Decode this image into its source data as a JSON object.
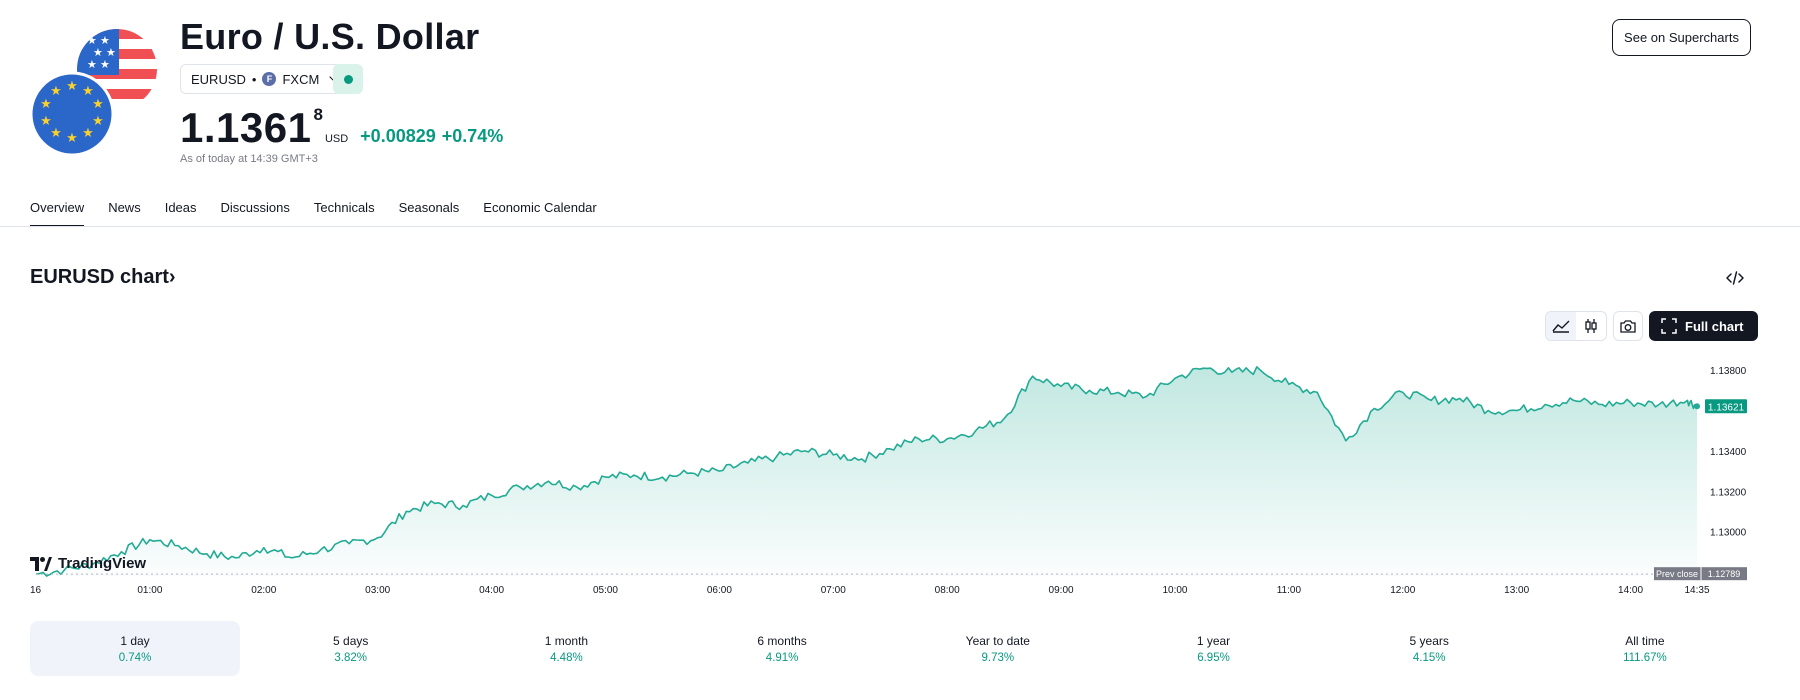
{
  "header": {
    "title": "Euro / U.S. Dollar",
    "symbol": "EURUSD",
    "broker": "FXCM",
    "price_main": "1.1361",
    "price_sup": "8",
    "currency": "USD",
    "change": "+0.00829",
    "change_pct": "+0.74%",
    "as_of": "As of today at 14:39 GMT+3",
    "supercharts_label": "See on Supercharts"
  },
  "tabs": [
    "Overview",
    "News",
    "Ideas",
    "Discussions",
    "Technicals",
    "Seasonals",
    "Economic Calendar"
  ],
  "chart_section": {
    "title": "EURUSD chart",
    "full_chart_label": "Full chart",
    "brand": "TradingView",
    "last_price_label": "1.13621",
    "prev_close_text": "Prev close",
    "prev_close_value": "1.12789"
  },
  "periods": [
    {
      "label": "1 day",
      "pct": "0.74%"
    },
    {
      "label": "5 days",
      "pct": "3.82%"
    },
    {
      "label": "1 month",
      "pct": "4.48%"
    },
    {
      "label": "6 months",
      "pct": "4.91%"
    },
    {
      "label": "Year to date",
      "pct": "9.73%"
    },
    {
      "label": "1 year",
      "pct": "6.95%"
    },
    {
      "label": "5 years",
      "pct": "4.15%"
    },
    {
      "label": "All time",
      "pct": "111.67%"
    }
  ],
  "colors": {
    "accent": "#089981",
    "line": "#22ab94",
    "text": "#131722",
    "muted": "#787b86"
  },
  "chart_data": {
    "type": "area",
    "xlabel": "",
    "ylabel": "",
    "x_ticks": [
      "16",
      "01:00",
      "02:00",
      "03:00",
      "04:00",
      "05:00",
      "06:00",
      "07:00",
      "08:00",
      "09:00",
      "10:00",
      "11:00",
      "12:00",
      "13:00",
      "14:00",
      "14:35"
    ],
    "y_ticks": [
      "1.13800",
      "1.13400",
      "1.13200",
      "1.13000"
    ],
    "ylim": [
      1.1278,
      1.139
    ],
    "prev_close": 1.12789,
    "last": 1.13621,
    "series": [
      {
        "x": [
          "00:00",
          "00:15",
          "00:30",
          "00:45",
          "01:00",
          "01:15",
          "01:30",
          "01:45",
          "02:00",
          "02:15",
          "02:30",
          "02:45",
          "03:00",
          "03:15",
          "03:30",
          "03:45",
          "04:00",
          "04:15",
          "04:30",
          "04:45",
          "05:00",
          "05:15",
          "05:30",
          "05:45",
          "06:00",
          "06:15",
          "06:30",
          "06:45",
          "07:00",
          "07:15",
          "07:30",
          "07:45",
          "08:00",
          "08:15",
          "08:30",
          "08:45",
          "09:00",
          "09:15",
          "09:30",
          "09:45",
          "10:00",
          "10:15",
          "10:30",
          "10:45",
          "11:00",
          "11:15",
          "11:30",
          "11:45",
          "12:00",
          "12:15",
          "12:30",
          "12:45",
          "13:00",
          "13:15",
          "13:30",
          "13:45",
          "14:00",
          "14:15",
          "14:30",
          "14:35"
        ],
        "values": [
          1.1279,
          1.1281,
          1.1284,
          1.129,
          1.1296,
          1.1293,
          1.1289,
          1.1287,
          1.1292,
          1.1287,
          1.1291,
          1.1294,
          1.1297,
          1.131,
          1.1314,
          1.1313,
          1.1318,
          1.1322,
          1.1325,
          1.1322,
          1.1327,
          1.1328,
          1.1327,
          1.1329,
          1.133,
          1.1334,
          1.1337,
          1.134,
          1.1338,
          1.1336,
          1.1341,
          1.1346,
          1.1346,
          1.135,
          1.1356,
          1.1377,
          1.1372,
          1.137,
          1.1369,
          1.1367,
          1.1376,
          1.1381,
          1.1379,
          1.138,
          1.1373,
          1.1369,
          1.1345,
          1.1361,
          1.1369,
          1.1365,
          1.1366,
          1.136,
          1.136,
          1.1363,
          1.1365,
          1.1363,
          1.1364,
          1.1363,
          1.1365,
          1.13621
        ]
      }
    ]
  }
}
